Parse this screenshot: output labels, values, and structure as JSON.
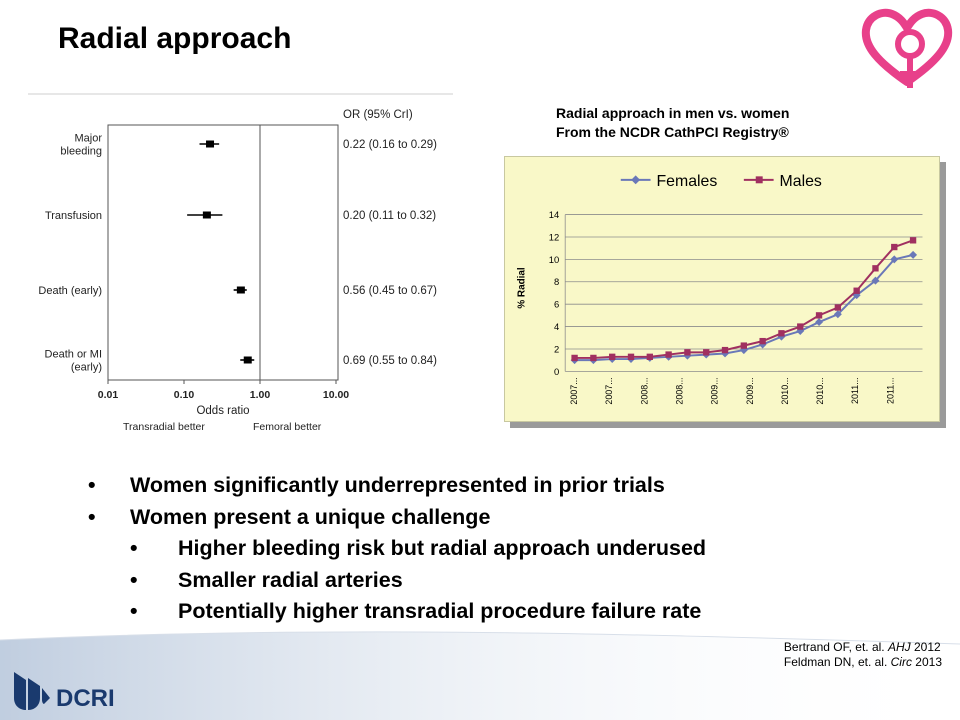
{
  "slide": {
    "title": "Radial approach"
  },
  "forest_plot": {
    "header": "OR (95% CrI)",
    "xlabel": "Odds ratio",
    "better_left": "Transradial better",
    "better_right": "Femoral better",
    "ticks": [
      "0.01",
      "0.10",
      "1.00",
      "10.00"
    ],
    "rows": [
      {
        "label_lines": [
          "Major",
          "bleeding"
        ],
        "or": 0.22,
        "lo": 0.16,
        "hi": 0.29,
        "text": "0.22 (0.16 to 0.29)"
      },
      {
        "label_lines": [
          "Transfusion"
        ],
        "or": 0.2,
        "lo": 0.11,
        "hi": 0.32,
        "text": "0.20 (0.11 to 0.32)"
      },
      {
        "label_lines": [
          "Death (early)"
        ],
        "or": 0.56,
        "lo": 0.45,
        "hi": 0.67,
        "text": "0.56 (0.45 to 0.67)"
      },
      {
        "label_lines": [
          "Death or MI",
          "(early)"
        ],
        "or": 0.69,
        "lo": 0.55,
        "hi": 0.84,
        "text": "0.69 (0.55 to 0.84)"
      }
    ]
  },
  "chart_caption": {
    "line1": "Radial approach in men vs. women",
    "line2": "From the NCDR CathPCI Registry®"
  },
  "chart_data": {
    "type": "line",
    "title": "",
    "xlabel": "",
    "ylabel": "% Radial",
    "ylim": [
      0,
      14
    ],
    "yticks": [
      0,
      2,
      4,
      6,
      8,
      10,
      12,
      14
    ],
    "legend": "top",
    "grid": true,
    "x_tick_labels": [
      "2007...",
      "2007...",
      "2008...",
      "2008...",
      "2009...",
      "2009...",
      "2010...",
      "2010...",
      "2011...",
      "2011..."
    ],
    "series": [
      {
        "name": "Females",
        "color": "#6a78b8",
        "marker": "diamond",
        "values": [
          1.0,
          1.0,
          1.1,
          1.1,
          1.2,
          1.3,
          1.4,
          1.5,
          1.6,
          1.9,
          2.4,
          3.1,
          3.6,
          4.4,
          5.1,
          6.8,
          8.1,
          10.0,
          10.4
        ]
      },
      {
        "name": "Males",
        "color": "#a03060",
        "marker": "square",
        "values": [
          1.2,
          1.2,
          1.3,
          1.3,
          1.3,
          1.5,
          1.7,
          1.7,
          1.9,
          2.3,
          2.7,
          3.4,
          4.0,
          5.0,
          5.7,
          7.2,
          9.2,
          11.1,
          11.7
        ]
      }
    ]
  },
  "bullets": [
    {
      "level": 1,
      "text": "Women significantly underrepresented in prior trials"
    },
    {
      "level": 1,
      "text": "Women present a unique challenge"
    },
    {
      "level": 2,
      "text": "Higher bleeding risk but radial approach underused"
    },
    {
      "level": 2,
      "text": "Smaller radial arteries"
    },
    {
      "level": 2,
      "text": "Potentially higher transradial procedure failure rate"
    }
  ],
  "bullet_glyph": "•",
  "references": [
    {
      "prefix": "Bertrand OF, et. al. ",
      "journal": "AHJ",
      "suffix": " 2012"
    },
    {
      "prefix": "Feldman DN, et. al. ",
      "journal": "Circ",
      "suffix": " 2013"
    }
  ],
  "footer": {
    "logo_text": "DCRI",
    "logo_color": "#1a3a6e",
    "band_color": "#c9d4e4"
  },
  "brand": {
    "heart_color": "#e8408a"
  }
}
